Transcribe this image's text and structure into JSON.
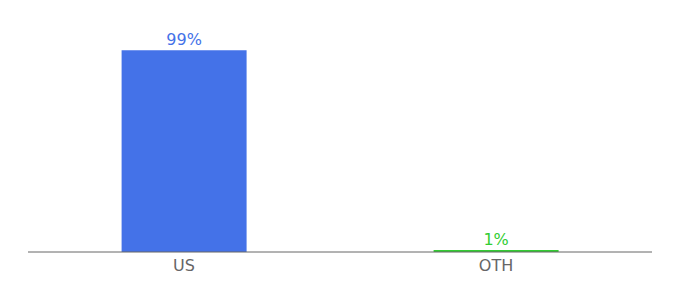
{
  "chart_data": {
    "type": "bar",
    "categories": [
      "US",
      "OTH"
    ],
    "values": [
      99,
      1
    ],
    "value_labels": [
      "99%",
      "1%"
    ],
    "colors": [
      "#4472e8",
      "#32cd32"
    ],
    "ylim": [
      0,
      108
    ],
    "data_labels": true,
    "tick_labels": "x",
    "grid": false
  }
}
